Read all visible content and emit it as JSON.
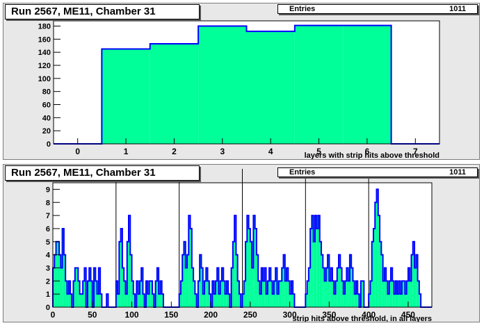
{
  "chart_data": [
    {
      "type": "bar",
      "title": "Run 2567, ME11, Chamber 31",
      "xlabel": "layers with strip hits above threshold",
      "ylabel": "",
      "stats": {
        "label": "Entries",
        "value": "1011"
      },
      "x_ticks": [
        "0",
        "1",
        "2",
        "3",
        "4",
        "5",
        "6",
        "7"
      ],
      "y_ticks": [
        "0",
        "20",
        "40",
        "60",
        "80",
        "100",
        "120",
        "140",
        "160",
        "180"
      ],
      "xlim": [
        -0.5,
        7.5
      ],
      "ylim": [
        0,
        188
      ],
      "bin_low_edges": [
        -0.5,
        0.5,
        1.5,
        2.5,
        3.5,
        4.5,
        5.5,
        6.5
      ],
      "bin_width": 1,
      "values": [
        0,
        145,
        153,
        180,
        172,
        181,
        181,
        0
      ],
      "colors": {
        "fill": "#00ff99",
        "line": "#0000ff"
      }
    },
    {
      "type": "bar",
      "title": "Run 2567, ME11, Chamber 31",
      "xlabel": "strip hits above threshold, in all layers",
      "ylabel": "",
      "stats": {
        "label": "Entries",
        "value": "1011"
      },
      "x_ticks": [
        "0",
        "50",
        "100",
        "150",
        "200",
        "250",
        "300",
        "350",
        "400",
        "450"
      ],
      "y_ticks": [
        "0",
        "1",
        "2",
        "3",
        "4",
        "5",
        "6",
        "7",
        "8",
        "9"
      ],
      "xlim": [
        0,
        480
      ],
      "ylim": [
        0,
        9.5
      ],
      "bin_width": 2,
      "vertical_lines": [
        80,
        160,
        240,
        320,
        400
      ],
      "values": [
        3,
        4,
        5,
        5,
        4,
        3,
        6,
        4,
        2,
        1,
        2,
        1,
        0,
        2,
        3,
        3,
        2,
        1,
        1,
        2,
        3,
        0,
        2,
        3,
        2,
        0,
        3,
        2,
        1,
        3,
        1,
        0,
        0,
        0,
        1,
        0,
        0,
        0,
        0,
        0,
        2,
        1,
        5,
        6,
        3,
        2,
        1,
        5,
        7,
        4,
        2,
        1,
        0,
        2,
        1,
        2,
        3,
        1,
        0,
        2,
        1,
        2,
        2,
        1,
        0,
        2,
        3,
        1,
        2,
        1,
        0,
        0,
        0,
        0,
        0,
        0,
        0,
        0,
        0,
        0,
        1,
        2,
        4,
        5,
        3,
        4,
        7,
        6,
        3,
        2,
        1,
        0,
        2,
        4,
        3,
        1,
        2,
        3,
        2,
        1,
        0,
        2,
        1,
        2,
        3,
        1,
        2,
        3,
        2,
        1,
        2,
        1,
        0,
        3,
        5,
        7,
        4,
        2,
        1,
        0,
        1,
        2,
        5,
        7,
        6,
        5,
        3,
        7,
        6,
        4,
        2,
        1,
        3,
        2,
        3,
        1,
        2,
        3,
        2,
        1,
        2,
        3,
        1,
        2,
        2,
        3,
        4,
        2,
        3,
        2,
        1,
        2,
        1,
        0,
        0,
        0,
        0,
        0,
        0,
        0,
        1,
        2,
        3,
        6,
        7,
        5,
        7,
        6,
        7,
        5,
        4,
        3,
        2,
        3,
        4,
        2,
        3,
        2,
        1,
        2,
        3,
        4,
        3,
        2,
        1,
        2,
        3,
        2,
        4,
        3,
        2,
        1,
        2,
        1,
        0,
        2,
        2,
        0,
        0,
        0,
        1,
        2,
        5,
        6,
        8,
        9,
        7,
        5,
        4,
        2,
        3,
        2,
        1,
        2,
        3,
        2,
        1,
        2,
        1,
        2,
        1,
        2,
        2,
        1,
        2,
        3,
        2,
        4,
        5,
        3,
        4,
        2,
        1,
        0,
        0,
        0,
        0,
        0,
        0,
        0
      ],
      "colors": {
        "fill": "#00ff99",
        "line": "#0000ff"
      }
    }
  ]
}
